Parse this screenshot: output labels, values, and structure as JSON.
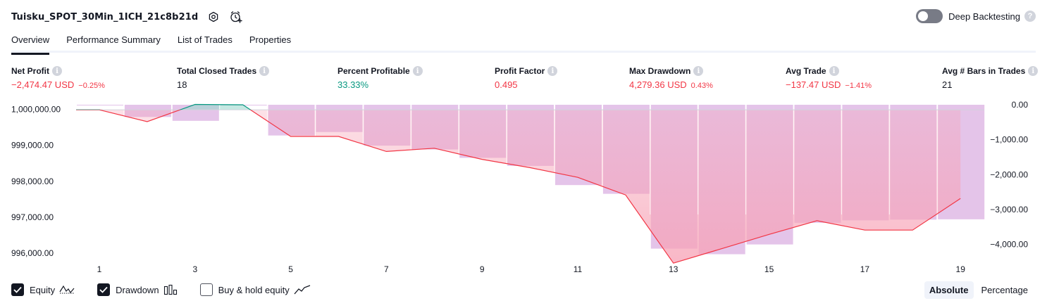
{
  "header": {
    "strategy_name": "Tuisku_SPOT_30Min_1ICH_21c8b21d",
    "deep_backtesting_label": "Deep Backtesting",
    "deep_backtesting_enabled": false
  },
  "tabs": [
    {
      "label": "Overview",
      "active": true
    },
    {
      "label": "Performance Summary",
      "active": false
    },
    {
      "label": "List of Trades",
      "active": false
    },
    {
      "label": "Properties",
      "active": false
    }
  ],
  "stats": {
    "net_profit": {
      "label": "Net Profit",
      "value": "−2,474.47 USD",
      "sub": "−0.25%"
    },
    "total_closed_trades": {
      "label": "Total Closed Trades",
      "value": "18"
    },
    "percent_profitable": {
      "label": "Percent Profitable",
      "value": "33.33%"
    },
    "profit_factor": {
      "label": "Profit Factor",
      "value": "0.495"
    },
    "max_drawdown": {
      "label": "Max Drawdown",
      "value": "4,279.36 USD",
      "sub": "0.43%"
    },
    "avg_trade": {
      "label": "Avg Trade",
      "value": "−137.47 USD",
      "sub": "−1.41%"
    },
    "avg_bars": {
      "label": "Avg # Bars in Trades",
      "value": "21"
    }
  },
  "colors": {
    "negative": "#f23645",
    "positive": "#089981",
    "drawdown_bar": "#e1bee7",
    "equity_line": "#f23645",
    "equity_fill_loss": "#f7a1b5",
    "equity_fill_gain": "#9fd9cf"
  },
  "chart_data": {
    "type": "line",
    "left_axis_ticks": [
      "1,000,000.00",
      "999,000.00",
      "998,000.00",
      "997,000.00",
      "996,000.00"
    ],
    "right_axis_ticks": [
      "0.00",
      "−1,000.00",
      "−2,000.00",
      "−3,000.00",
      "−4,000.00"
    ],
    "x_ticks": [
      "1",
      "3",
      "5",
      "7",
      "9",
      "11",
      "13",
      "15",
      "17",
      "19"
    ],
    "left_ylim": [
      995900,
      1000150
    ],
    "right_ylim": [
      -4350,
      20
    ],
    "series": [
      {
        "name": "Equity",
        "x": [
          1,
          2,
          3,
          4,
          5,
          6,
          7,
          8,
          9,
          10,
          11,
          12,
          13,
          14,
          15,
          16,
          17,
          18,
          19
        ],
        "values": [
          999990,
          999660,
          1000140,
          1000130,
          999250,
          999250,
          998830,
          998920,
          998610,
          998380,
          998110,
          997620,
          995720,
          996120,
          996520,
          996900,
          996640,
          996640,
          997520
        ]
      },
      {
        "name": "Drawdown",
        "x": [
          1,
          2,
          3,
          4,
          5,
          6,
          7,
          8,
          9,
          10,
          11,
          12,
          13,
          14,
          15,
          16,
          17,
          18,
          19
        ],
        "values": [
          -20,
          -350,
          -460,
          -20,
          -880,
          -780,
          -1170,
          -1280,
          -1520,
          -1750,
          -2300,
          -2550,
          -4120,
          -4280,
          -4000,
          -3380,
          -3310,
          -3290,
          -3280
        ]
      }
    ]
  },
  "legend": [
    {
      "label": "Equity",
      "checked": true,
      "icon": "equity-line-icon"
    },
    {
      "label": "Drawdown",
      "checked": true,
      "icon": "drawdown-bars-icon"
    },
    {
      "label": "Buy & hold equity",
      "checked": false,
      "icon": "buy-hold-line-icon"
    }
  ],
  "modes": [
    {
      "label": "Absolute",
      "active": true
    },
    {
      "label": "Percentage",
      "active": false
    }
  ]
}
